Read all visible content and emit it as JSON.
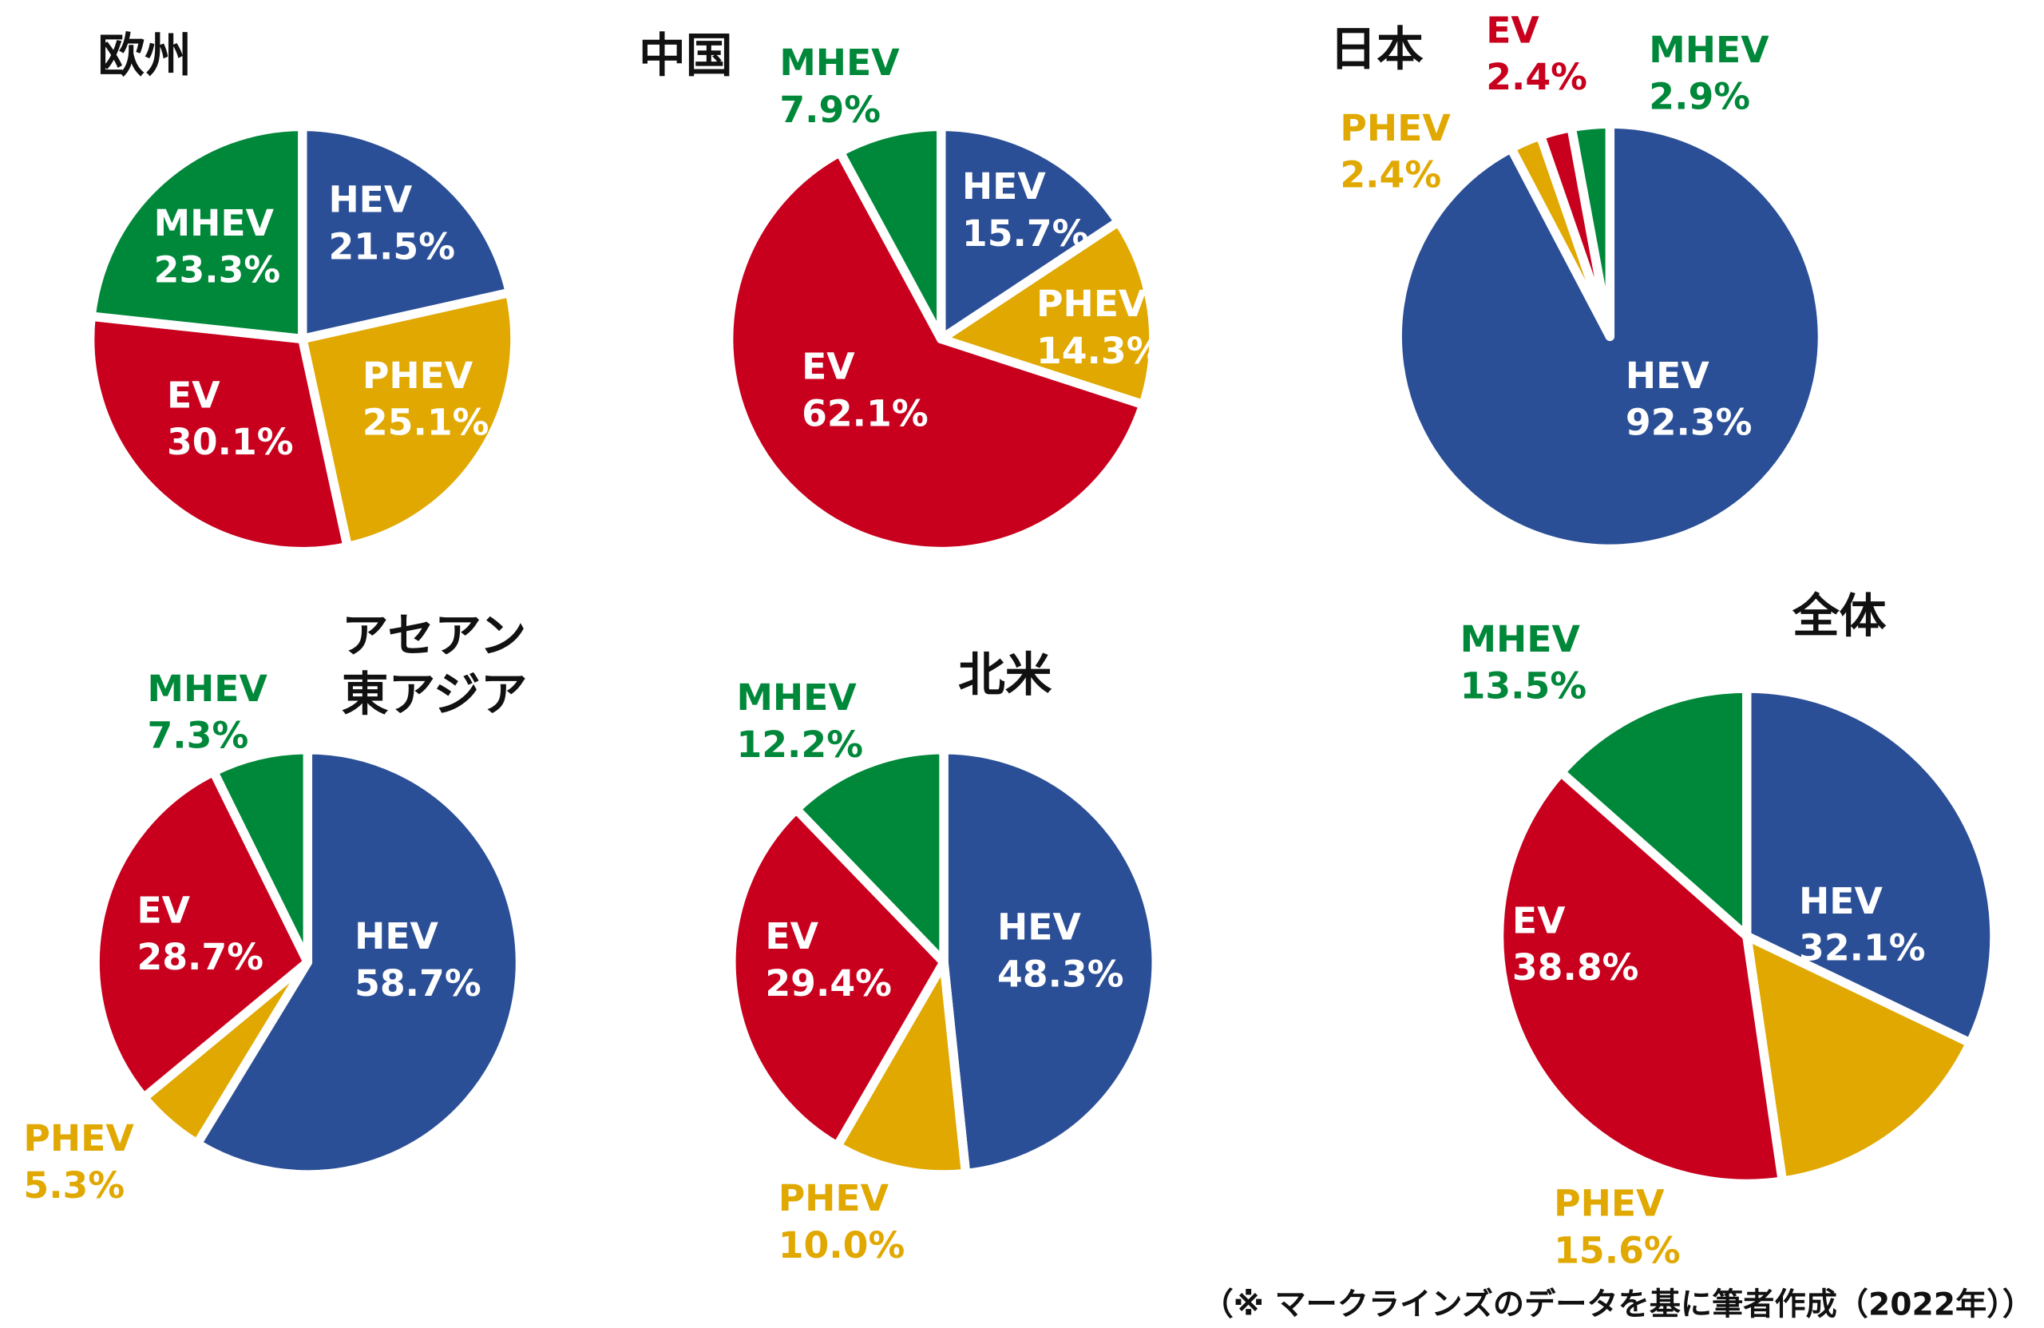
{
  "chart_data": [
    {
      "type": "pie",
      "title": "欧州",
      "categories": [
        "HEV",
        "PHEV",
        "EV",
        "MHEV"
      ],
      "values": [
        21.5,
        25.1,
        30.1,
        23.3
      ],
      "value_labels": [
        "21.5%",
        "25.1%",
        "30.1%",
        "23.3%"
      ],
      "colors": [
        "#2b4f96",
        "#e0a800",
        "#c8001e",
        "#00883a"
      ]
    },
    {
      "type": "pie",
      "title": "中国",
      "categories": [
        "HEV",
        "PHEV",
        "EV",
        "MHEV"
      ],
      "values": [
        15.7,
        14.3,
        62.1,
        7.9
      ],
      "value_labels": [
        "15.7%",
        "14.3%",
        "62.1%",
        "7.9%"
      ],
      "colors": [
        "#2b4f96",
        "#e0a800",
        "#c8001e",
        "#00883a"
      ]
    },
    {
      "type": "pie",
      "title": "日本",
      "categories": [
        "HEV",
        "PHEV",
        "EV",
        "MHEV"
      ],
      "values": [
        92.3,
        2.4,
        2.4,
        2.9
      ],
      "value_labels": [
        "92.3%",
        "2.4%",
        "2.4%",
        "2.9%"
      ],
      "colors": [
        "#2b4f96",
        "#e0a800",
        "#c8001e",
        "#00883a"
      ]
    },
    {
      "type": "pie",
      "title": [
        "アセアン",
        "東アジア"
      ],
      "categories": [
        "HEV",
        "PHEV",
        "EV",
        "MHEV"
      ],
      "values": [
        58.7,
        5.3,
        28.7,
        7.3
      ],
      "value_labels": [
        "58.7%",
        "5.3%",
        "28.7%",
        "7.3%"
      ],
      "colors": [
        "#2b4f96",
        "#e0a800",
        "#c8001e",
        "#00883a"
      ]
    },
    {
      "type": "pie",
      "title": "北米",
      "categories": [
        "HEV",
        "PHEV",
        "EV",
        "MHEV"
      ],
      "values": [
        48.3,
        10.0,
        29.4,
        12.2
      ],
      "value_labels": [
        "48.3%",
        "10.0%",
        "29.4%",
        "12.2%"
      ],
      "colors": [
        "#2b4f96",
        "#e0a800",
        "#c8001e",
        "#00883a"
      ]
    },
    {
      "type": "pie",
      "title": "全体",
      "categories": [
        "HEV",
        "PHEV",
        "EV",
        "MHEV"
      ],
      "values": [
        32.1,
        15.6,
        38.8,
        13.5
      ],
      "value_labels": [
        "32.1%",
        "15.6%",
        "38.8%",
        "13.5%"
      ],
      "colors": [
        "#2b4f96",
        "#e0a800",
        "#c8001e",
        "#00883a"
      ]
    }
  ],
  "note": "（※ マークラインズのデータを基に筆者作成（2022年））"
}
